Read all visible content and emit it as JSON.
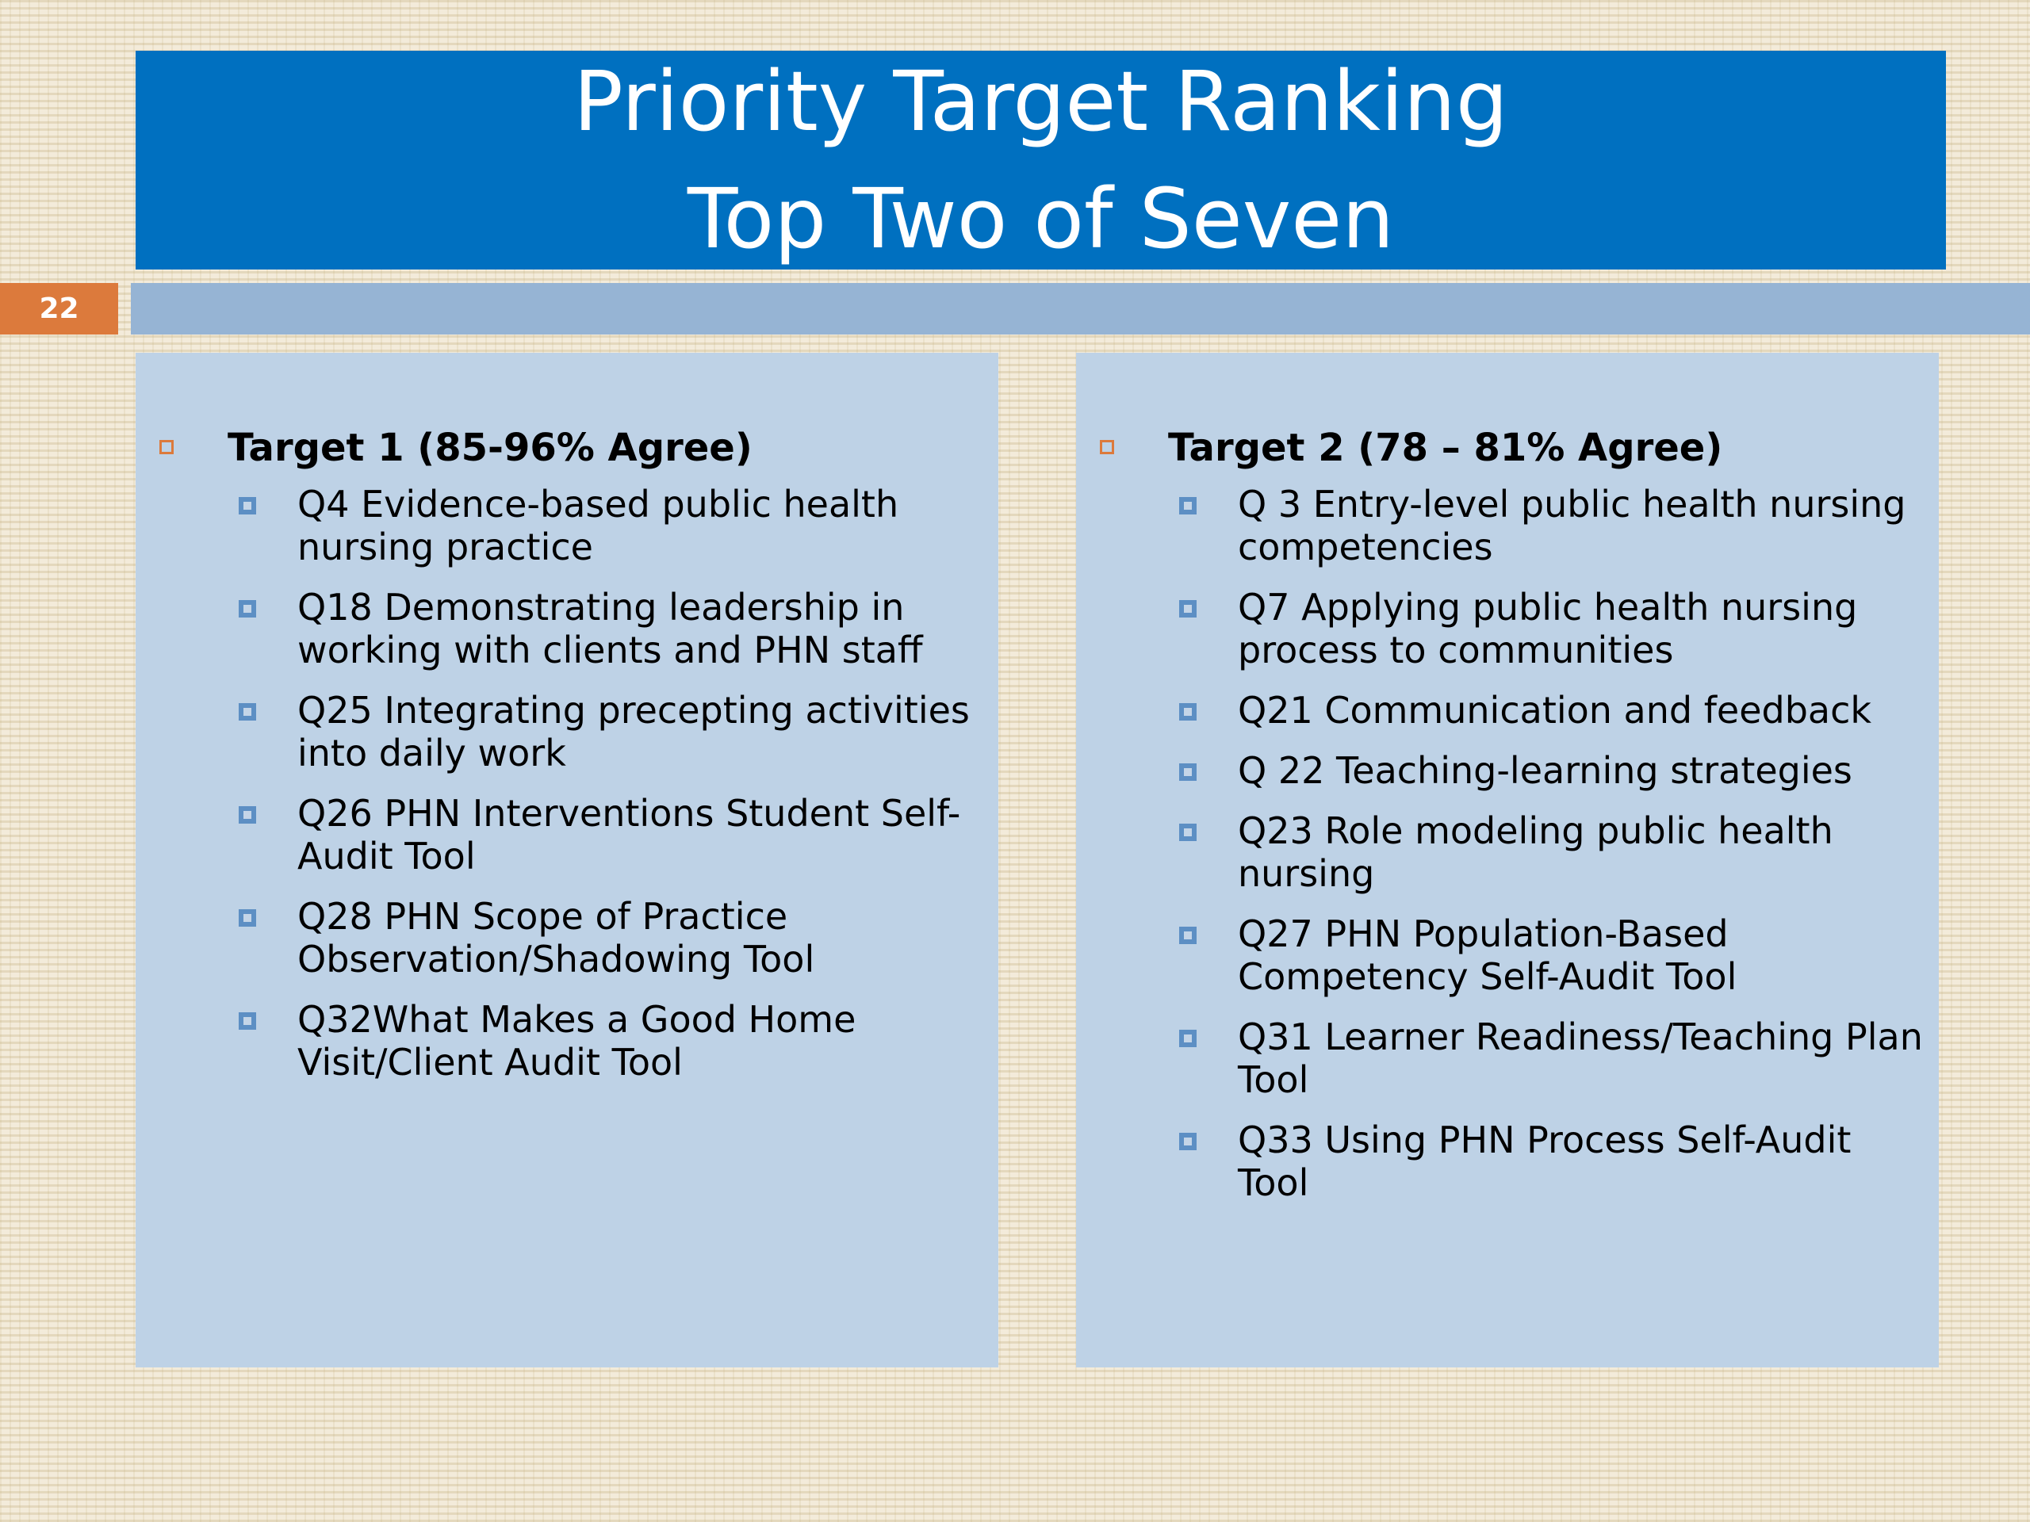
{
  "title": {
    "line1": "Priority Target Ranking",
    "line2": "Top Two of Seven"
  },
  "slide_number": "22",
  "colors": {
    "title_bg": "#0070c0",
    "accent_bar": "#96b4d4",
    "slide_number_bg": "#dc7a3c",
    "panel_bg": "#bed2e6",
    "heading_bullet": "#dc7a3c",
    "sub_bullet": "#5d8fc4"
  },
  "left_panel": {
    "heading": "Target 1  (85-96% Agree)",
    "items": [
      "Q4 Evidence-based public health nursing practice",
      "Q18 Demonstrating leadership in working with clients and PHN staff",
      "Q25 Integrating precepting activities into daily work",
      "Q26 PHN Interventions Student Self-Audit Tool",
      "Q28 PHN Scope of Practice Observation/Shadowing Tool",
      "Q32What Makes a Good Home Visit/Client  Audit Tool"
    ]
  },
  "right_panel": {
    "heading": "Target 2  (78 – 81% Agree)",
    "items": [
      "Q 3 Entry-level public health nursing competencies",
      "Q7 Applying public health nursing process to communities",
      "Q21 Communication and feedback",
      "Q 22 Teaching-learning strategies",
      "Q23 Role modeling public health nursing",
      "Q27 PHN Population-Based Competency Self-Audit Tool",
      "Q31 Learner Readiness/Teaching Plan Tool",
      "Q33 Using PHN Process Self-Audit Tool"
    ]
  }
}
